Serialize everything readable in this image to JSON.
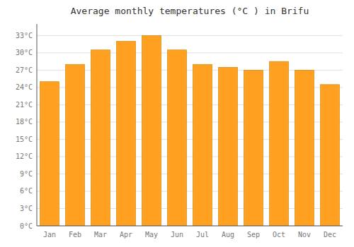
{
  "chart_data": {
    "type": "bar",
    "title": "Average monthly temperatures (°C ) in Brifu",
    "categories": [
      "Jan",
      "Feb",
      "Mar",
      "Apr",
      "May",
      "Jun",
      "Jul",
      "Aug",
      "Sep",
      "Oct",
      "Nov",
      "Dec"
    ],
    "values": [
      25.0,
      28.0,
      30.5,
      32.0,
      33.0,
      30.5,
      28.0,
      27.5,
      27.0,
      28.5,
      27.0,
      24.5
    ],
    "color": "#FFA020",
    "ylim": [
      0,
      35
    ],
    "yticks": [
      {
        "value": 0,
        "label": "0°C"
      },
      {
        "value": 3,
        "label": "3°C"
      },
      {
        "value": 6,
        "label": "6°C"
      },
      {
        "value": 9,
        "label": "9°C"
      },
      {
        "value": 12,
        "label": "12°C"
      },
      {
        "value": 15,
        "label": "15°C"
      },
      {
        "value": 18,
        "label": "18°C"
      },
      {
        "value": 21,
        "label": "21°C"
      },
      {
        "value": 24,
        "label": "24°C"
      },
      {
        "value": 27,
        "label": "27°C"
      },
      {
        "value": 30,
        "label": "30°C"
      },
      {
        "value": 33,
        "label": "33°C"
      }
    ],
    "grid": true
  }
}
